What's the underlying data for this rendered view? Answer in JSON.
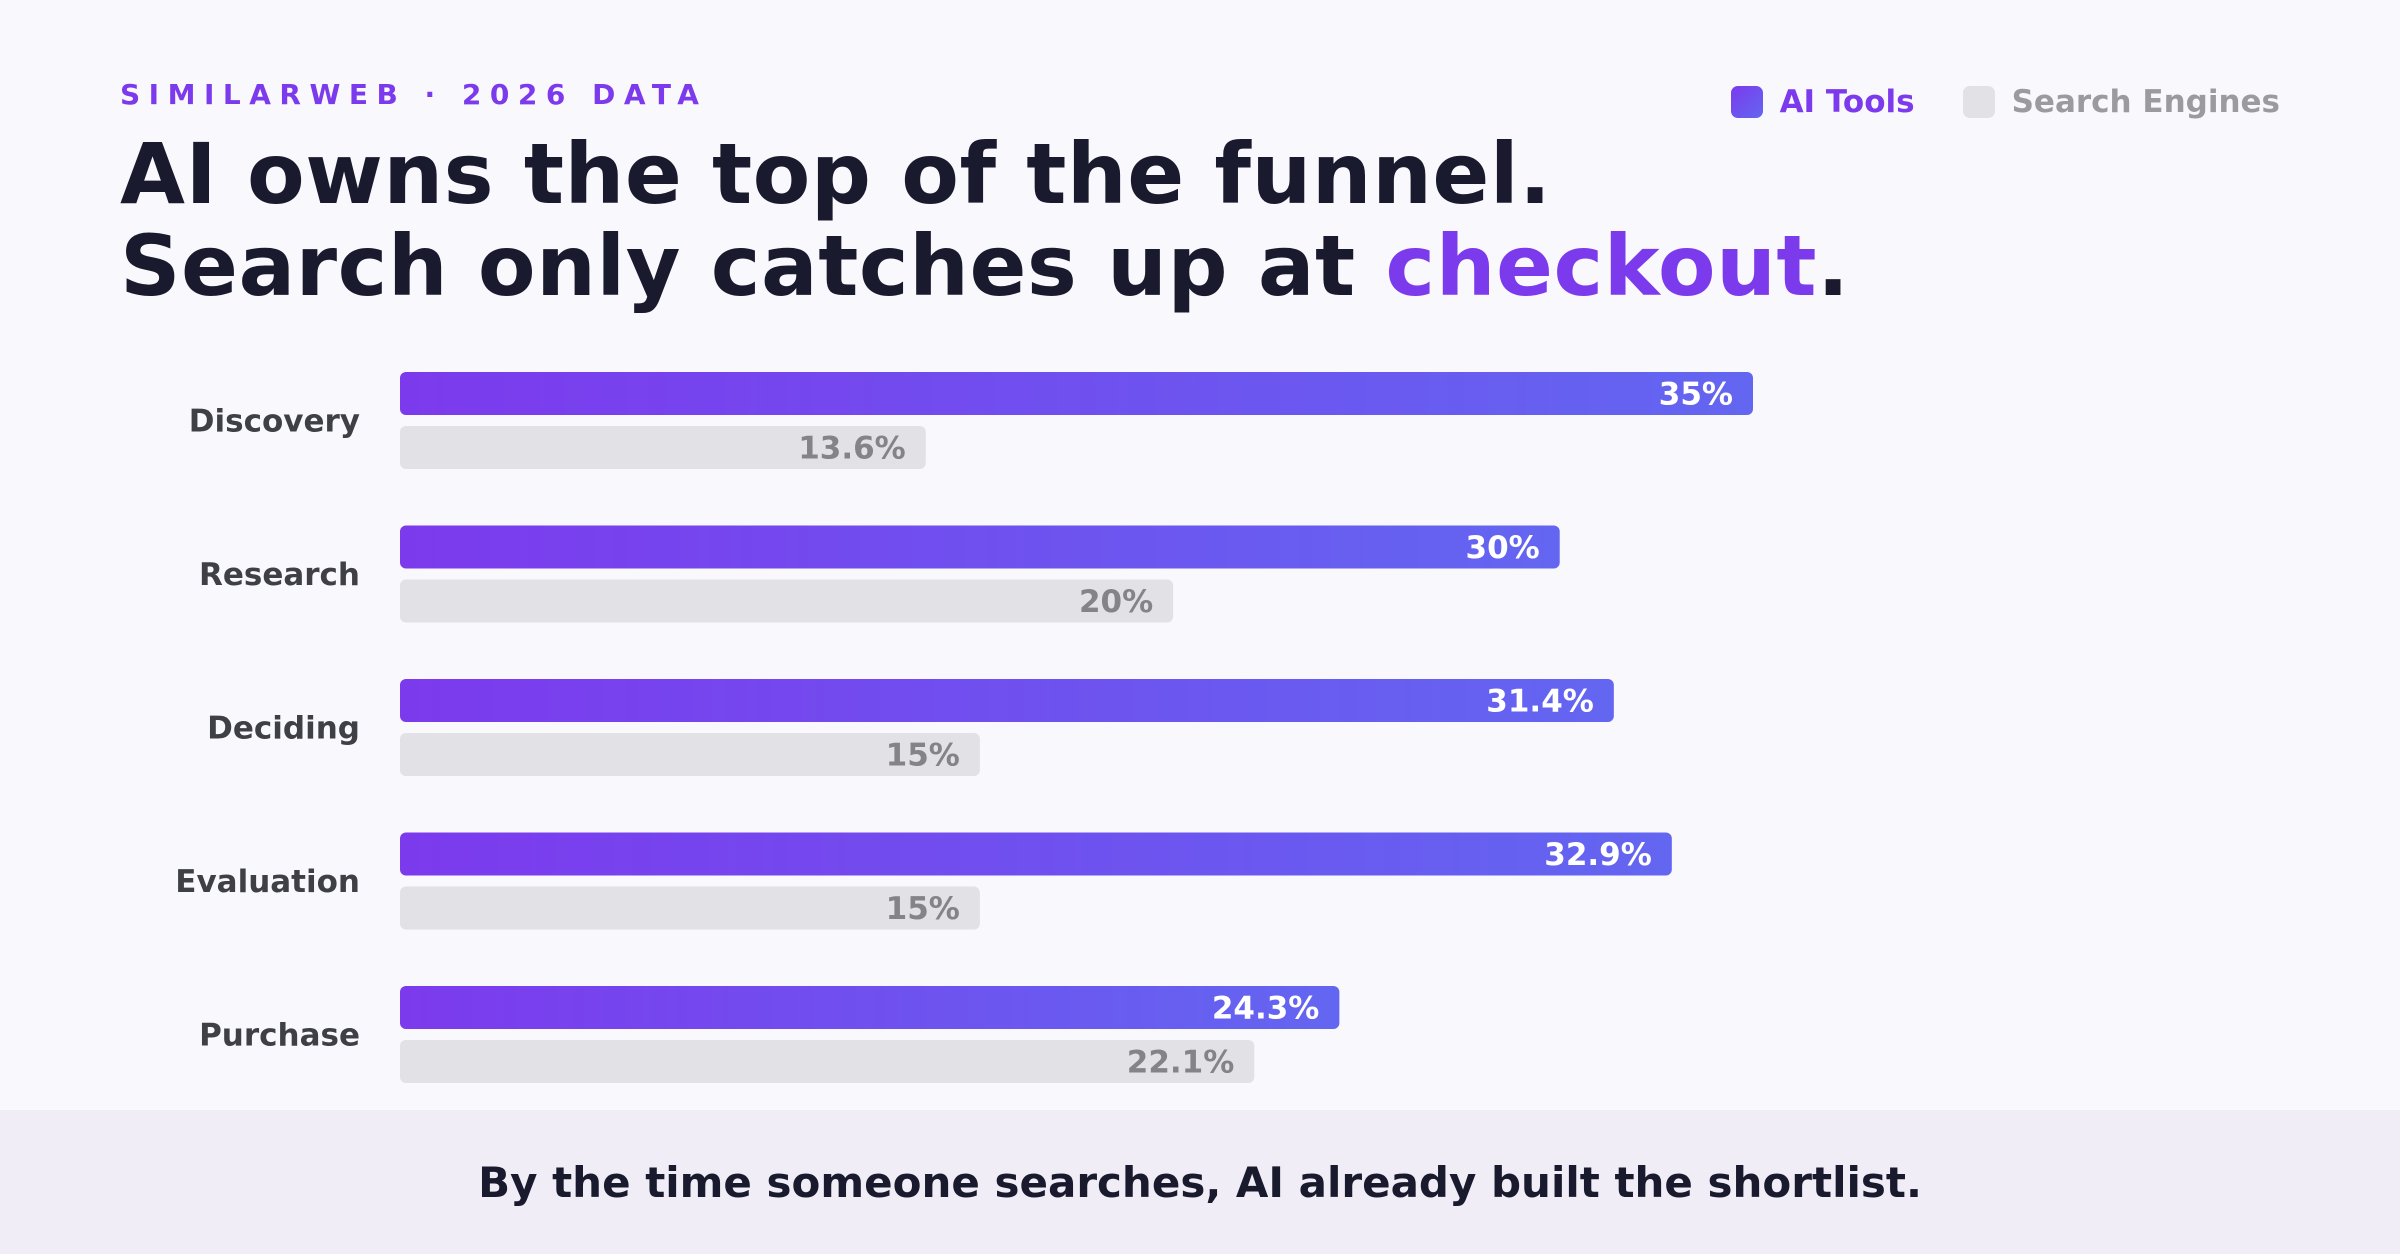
{
  "kicker": "SIMILARWEB · 2026 DATA",
  "headline": {
    "line1": "AI owns the top of the funnel.",
    "line2_prefix": "Search only catches up at ",
    "line2_accent": "checkout",
    "line2_suffix": "."
  },
  "legend": {
    "ai_label": "AI Tools",
    "search_label": "Search Engines"
  },
  "colors": {
    "ai_gradient_start": "#7c3aed",
    "ai_gradient_end": "#6366f1",
    "search_bar": "#e1e1e6",
    "accent": "#7c3aed",
    "text_dark": "#1a1a2e"
  },
  "chart_data": {
    "type": "bar",
    "orientation": "horizontal",
    "categories": [
      "Discovery",
      "Research",
      "Deciding",
      "Evaluation",
      "Purchase"
    ],
    "series": [
      {
        "name": "AI Tools",
        "values": [
          35,
          30,
          31.4,
          32.9,
          24.3
        ],
        "labels": [
          "35%",
          "30%",
          "31.4%",
          "32.9%",
          "24.3%"
        ]
      },
      {
        "name": "Search Engines",
        "values": [
          13.6,
          20,
          15,
          15,
          22.1
        ],
        "labels": [
          "13.6%",
          "20%",
          "15%",
          "15%",
          "22.1%"
        ]
      }
    ],
    "xlim": [
      0,
      35
    ],
    "grid": false,
    "legend_position": "top-right",
    "title": "AI owns the top of the funnel. Search only catches up at checkout."
  },
  "footer": {
    "text": "By the time someone searches, AI already built the shortlist."
  }
}
